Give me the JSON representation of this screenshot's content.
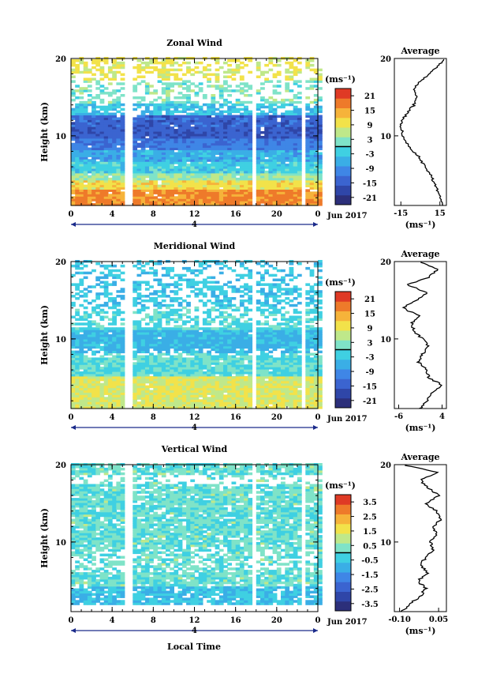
{
  "figure": {
    "date_label": "Jun 2017",
    "day_label": "4",
    "xlabel": "Local Time",
    "ylabel": "Height (km)",
    "unit_label": "(ms⁻¹)",
    "avg_title": "Average"
  },
  "colormap": [
    "#2c2f7a",
    "#2f46a8",
    "#3b64d0",
    "#3f86e6",
    "#3aaee6",
    "#3fd0e2",
    "#7fe3c8",
    "#bfe88a",
    "#f2e24a",
    "#f6b33a",
    "#ee7a2a",
    "#df3a25"
  ],
  "chart_data": [
    {
      "type": "heatmap",
      "title": "Zonal Wind",
      "ylabel": "Height (km)",
      "xlim": [
        0,
        24
      ],
      "ylim": [
        1,
        20
      ],
      "x_ticks": [
        "0",
        "4",
        "8",
        "12",
        "16",
        "20",
        "0"
      ],
      "y_ticks": [
        "10",
        "20"
      ],
      "colorbar": {
        "unit": "(ms⁻¹)",
        "ticks": [
          "21",
          "15",
          "9",
          "3",
          "-3",
          "-9",
          "-15",
          "-21"
        ],
        "range": [
          -24,
          24
        ]
      },
      "data_gaps_hours": [
        5.6,
        17.8,
        22.5
      ],
      "profile": {
        "heights_km": [
          1,
          2,
          3,
          4,
          5,
          6,
          7,
          8,
          9,
          10,
          11,
          12,
          13,
          14,
          15,
          16,
          17,
          18,
          19,
          20
        ],
        "values": [
          18,
          16,
          13,
          10,
          8,
          4,
          0,
          -5,
          -10,
          -13,
          -15,
          -14,
          -10,
          -5,
          -2,
          -6,
          0,
          7,
          14,
          18
        ],
        "xlim": [
          -20,
          20
        ],
        "x_ticks": [
          "-15",
          "15"
        ]
      }
    },
    {
      "type": "heatmap",
      "title": "Meridional Wind",
      "ylabel": "Height (km)",
      "xlim": [
        0,
        24
      ],
      "ylim": [
        1,
        20
      ],
      "x_ticks": [
        "0",
        "4",
        "8",
        "12",
        "16",
        "20",
        "0"
      ],
      "y_ticks": [
        "10",
        "20"
      ],
      "colorbar": {
        "unit": "(ms⁻¹)",
        "ticks": [
          "21",
          "15",
          "9",
          "3",
          "-3",
          "-9",
          "-15",
          "-21"
        ],
        "range": [
          -24,
          24
        ]
      },
      "data_gaps_hours": [
        5.6,
        17.8,
        22.5
      ],
      "profile": {
        "heights_km": [
          1,
          2,
          3,
          4,
          5,
          6,
          7,
          8,
          9,
          10,
          11,
          12,
          13,
          14,
          15,
          16,
          17,
          18,
          19,
          20
        ],
        "values": [
          -1,
          0.5,
          1.5,
          4,
          1,
          0.5,
          -1.5,
          -0.5,
          1,
          -0.5,
          -2.5,
          -3,
          -1.5,
          -5,
          -2,
          0.5,
          -4,
          1,
          3,
          -1
        ],
        "xlim": [
          -7,
          5
        ],
        "x_ticks": [
          "-6",
          "4"
        ]
      }
    },
    {
      "type": "heatmap",
      "title": "Vertical Wind",
      "ylabel": "Height (km)",
      "xlabel": "Local Time",
      "xlim": [
        0,
        24
      ],
      "ylim": [
        1,
        20
      ],
      "x_ticks": [
        "0",
        "4",
        "8",
        "12",
        "16",
        "20",
        "0"
      ],
      "y_ticks": [
        "10",
        "20"
      ],
      "colorbar": {
        "unit": "(ms⁻¹)",
        "ticks": [
          "3.5",
          "2.5",
          "1.5",
          "0.5",
          "-0.5",
          "-1.5",
          "-2.5",
          "-3.5"
        ],
        "range": [
          -4,
          4
        ]
      },
      "data_gaps_hours": [
        5.6,
        17.8,
        22.5
      ],
      "profile": {
        "heights_km": [
          1,
          2,
          3,
          4,
          5,
          6,
          7,
          8,
          9,
          10,
          11,
          12,
          13,
          14,
          15,
          16,
          17,
          18,
          19,
          20
        ],
        "values": [
          -0.09,
          -0.06,
          -0.02,
          0.0,
          -0.03,
          0.01,
          -0.02,
          0.0,
          0.03,
          0.02,
          0.04,
          0.03,
          0.06,
          0.04,
          0.0,
          0.05,
          0.01,
          -0.02,
          0.05,
          -0.09
        ],
        "xlim": [
          -0.12,
          0.08
        ],
        "x_ticks": [
          "-0.10",
          "0.05"
        ]
      }
    }
  ]
}
